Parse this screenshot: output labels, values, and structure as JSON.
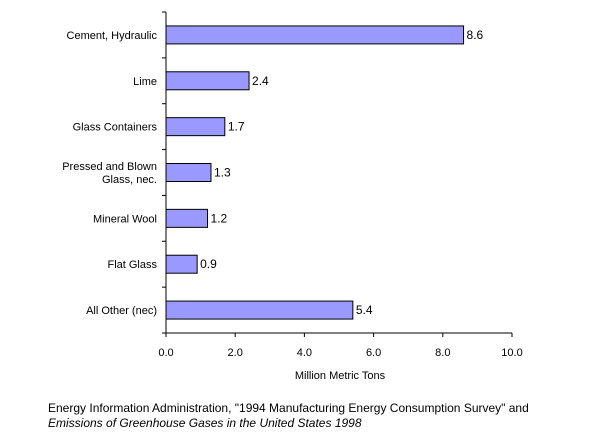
{
  "chart_data": {
    "type": "bar",
    "orientation": "horizontal",
    "categories": [
      "Cement, Hydraulic",
      "Lime",
      "Glass Containers",
      "Pressed and Blown Glass, nec.",
      "Mineral Wool",
      "Flat Glass",
      "All Other (nec)"
    ],
    "category_lines": [
      [
        "Cement, Hydraulic"
      ],
      [
        "Lime"
      ],
      [
        "Glass Containers"
      ],
      [
        "Pressed and Blown",
        "Glass, nec."
      ],
      [
        "Mineral Wool"
      ],
      [
        "Flat Glass"
      ],
      [
        "All Other (nec)"
      ]
    ],
    "values": [
      8.6,
      2.4,
      1.7,
      1.3,
      1.2,
      0.9,
      5.4
    ],
    "value_labels": [
      "8.6",
      "2.4",
      "1.7",
      "1.3",
      "1.2",
      "0.9",
      "5.4"
    ],
    "xlabel": "Million Metric Tons",
    "xlim": [
      0,
      10
    ],
    "xticks": [
      "0.0",
      "2.0",
      "4.0",
      "6.0",
      "8.0",
      "10.0"
    ],
    "grid": false,
    "bar_color": "#9999ff",
    "bar_edge_color": "#000000"
  },
  "source": {
    "line1": "Energy Information Administration, \"1994 Manufacturing Energy Consumption Survey\" and",
    "line2": "Emissions of Greenhouse Gases in the United States 1998"
  }
}
